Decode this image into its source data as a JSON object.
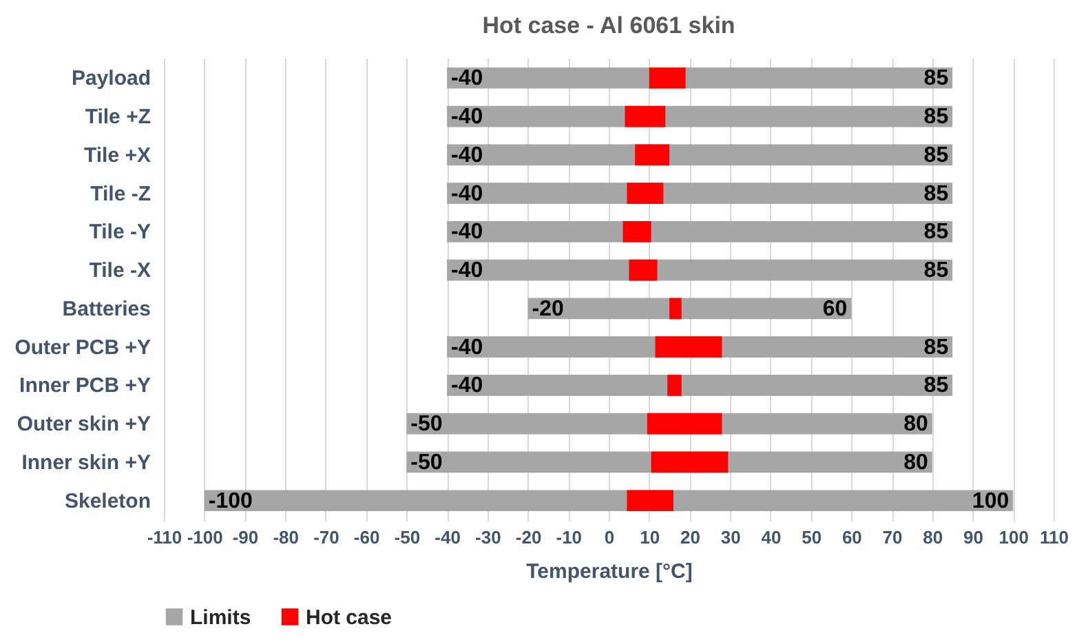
{
  "chart_data": {
    "type": "bar",
    "orientation": "horizontal",
    "title": "Hot case - Al 6061 skin",
    "xlabel": "Temperature [°C]",
    "categories": [
      "Payload",
      "Tile +Z",
      "Tile +X",
      "Tile -Z",
      "Tile -Y",
      "Tile -X",
      "Batteries",
      "Outer PCB +Y",
      "Inner PCB +Y",
      "Outer skin +Y",
      "Inner skin +Y",
      "Skeleton"
    ],
    "series": [
      {
        "name": "Limits",
        "color": "#a6a6a6",
        "base": [
          -40,
          -40,
          -40,
          -40,
          -40,
          -40,
          -20,
          -40,
          -40,
          -50,
          -50,
          -100
        ],
        "values": [
          125,
          125,
          125,
          125,
          125,
          125,
          80,
          125,
          125,
          130,
          130,
          200
        ]
      },
      {
        "name": "Hot case",
        "color": "#ff0000",
        "base": [
          10,
          4,
          6.5,
          4.5,
          3.5,
          5,
          15,
          11.5,
          14.5,
          9.5,
          10.5,
          4.5
        ],
        "values": [
          9,
          10,
          8.5,
          9,
          7,
          7,
          3,
          16.5,
          3.5,
          18.5,
          19,
          11.5
        ]
      }
    ],
    "xlim": [
      -110,
      110
    ],
    "xticks": [
      -110,
      -100,
      -90,
      -80,
      -70,
      -60,
      -50,
      -40,
      -30,
      -20,
      -10,
      0,
      10,
      20,
      30,
      40,
      50,
      60,
      70,
      80,
      90,
      100,
      110
    ],
    "grid": "x",
    "legend": "bottom",
    "annotations": [
      {
        "text": "-40",
        "x": -40,
        "y": "Payload"
      },
      {
        "text": "85",
        "x": 85,
        "y": "Payload"
      },
      {
        "text": "-40",
        "x": -40,
        "y": "Tile +Z"
      },
      {
        "text": "85",
        "x": 85,
        "y": "Tile +Z"
      },
      {
        "text": "-40",
        "x": -40,
        "y": "Tile +X"
      },
      {
        "text": "85",
        "x": 85,
        "y": "Tile +X"
      },
      {
        "text": "-40",
        "x": -40,
        "y": "Tile -Z"
      },
      {
        "text": "85",
        "x": 85,
        "y": "Tile -Z"
      },
      {
        "text": "-40",
        "x": -40,
        "y": "Tile -Y"
      },
      {
        "text": "85",
        "x": 85,
        "y": "Tile -Y"
      },
      {
        "text": "-40",
        "x": -40,
        "y": "Tile -X"
      },
      {
        "text": "85",
        "x": 85,
        "y": "Tile -X"
      },
      {
        "text": "-20",
        "x": -20,
        "y": "Batteries"
      },
      {
        "text": "60",
        "x": 60,
        "y": "Batteries"
      },
      {
        "text": "-40",
        "x": -40,
        "y": "Outer PCB +Y"
      },
      {
        "text": "85",
        "x": 85,
        "y": "Outer PCB +Y"
      },
      {
        "text": "-40",
        "x": -40,
        "y": "Inner PCB +Y"
      },
      {
        "text": "85",
        "x": 85,
        "y": "Inner PCB +Y"
      },
      {
        "text": "-50",
        "x": -50,
        "y": "Outer skin +Y"
      },
      {
        "text": "80",
        "x": 80,
        "y": "Outer skin +Y"
      },
      {
        "text": "-50",
        "x": -50,
        "y": "Inner skin +Y"
      },
      {
        "text": "80",
        "x": 80,
        "y": "Inner skin +Y"
      },
      {
        "text": "-100",
        "x": -100,
        "y": "Skeleton"
      },
      {
        "text": "100",
        "x": 100,
        "y": "Skeleton"
      }
    ]
  }
}
